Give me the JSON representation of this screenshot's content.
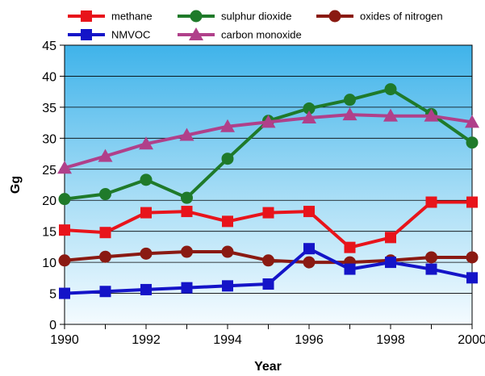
{
  "chart_data": {
    "type": "line",
    "xlabel": "Year",
    "ylabel": "Gg",
    "x": [
      1990,
      1991,
      1992,
      1993,
      1994,
      1995,
      1996,
      1997,
      1998,
      1999,
      2000
    ],
    "xticks": [
      "1990",
      "1992",
      "1994",
      "1996",
      "1998",
      "2000"
    ],
    "xtick_values": [
      1990,
      1992,
      1994,
      1996,
      1998,
      2000
    ],
    "ylim": [
      0,
      45
    ],
    "yticks": [
      "0",
      "5",
      "10",
      "15",
      "20",
      "25",
      "30",
      "35",
      "40",
      "45"
    ],
    "ytick_values": [
      0,
      5,
      10,
      15,
      20,
      25,
      30,
      35,
      40,
      45
    ],
    "grid": "horizontal",
    "legend_position": "top",
    "background": "sky-blue gradient",
    "series": [
      {
        "name": "methane",
        "color": "#e8141b",
        "marker": "square",
        "values": [
          15.2,
          14.8,
          18.0,
          18.2,
          16.6,
          18.0,
          18.2,
          12.4,
          14.0,
          19.7,
          19.7
        ]
      },
      {
        "name": "sulphur dioxide",
        "color": "#1f7a2a",
        "marker": "circle",
        "values": [
          20.2,
          21.0,
          23.3,
          20.4,
          26.7,
          32.8,
          34.8,
          36.2,
          37.9,
          33.9,
          29.3
        ]
      },
      {
        "name": "oxides of nitrogen",
        "color": "#8a1a12",
        "marker": "circle",
        "values": [
          10.3,
          10.9,
          11.4,
          11.7,
          11.7,
          10.3,
          10.0,
          10.0,
          10.3,
          10.8,
          10.8
        ]
      },
      {
        "name": "NMVOC",
        "color": "#1414c8",
        "marker": "square",
        "values": [
          5.0,
          5.3,
          5.6,
          5.9,
          6.2,
          6.5,
          12.2,
          8.9,
          10.0,
          8.9,
          7.5
        ]
      },
      {
        "name": "carbon monoxide",
        "color": "#b0408a",
        "marker": "triangle",
        "values": [
          25.2,
          27.1,
          29.1,
          30.5,
          31.9,
          32.6,
          33.3,
          33.8,
          33.6,
          33.6,
          32.6
        ]
      }
    ]
  }
}
